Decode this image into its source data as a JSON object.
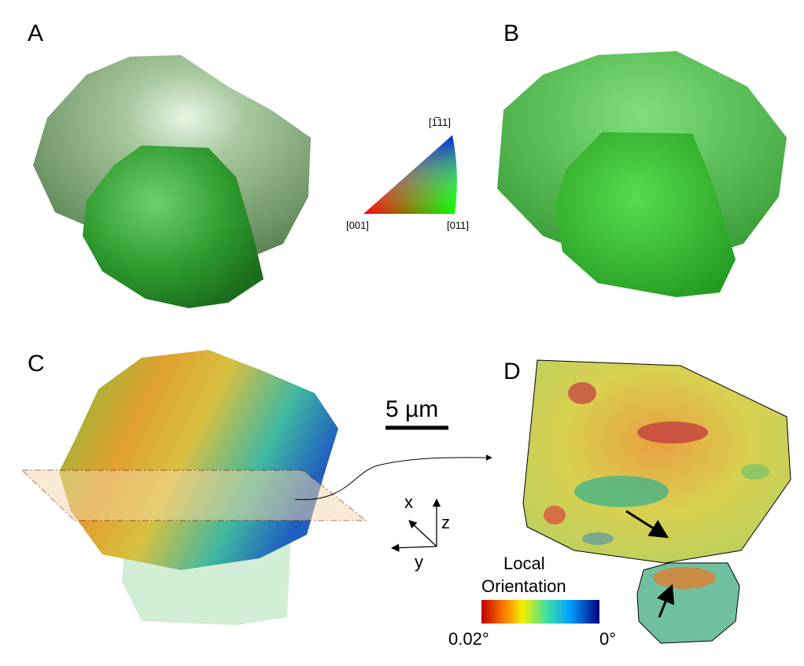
{
  "panels": {
    "a": {
      "label": "A"
    },
    "b": {
      "label": "B"
    },
    "c": {
      "label": "C"
    },
    "d": {
      "label": "D"
    }
  },
  "ipf_key": {
    "top": "[1̅11]",
    "left": "[001]",
    "right": "[011]"
  },
  "scale_bar": {
    "label": "5 µm"
  },
  "axes": {
    "x": "x",
    "y": "y",
    "z": "z"
  },
  "colorbar": {
    "title_line1": "Local",
    "title_line2": "Orientation",
    "min_label": "0.02°",
    "max_label": "0°"
  }
}
